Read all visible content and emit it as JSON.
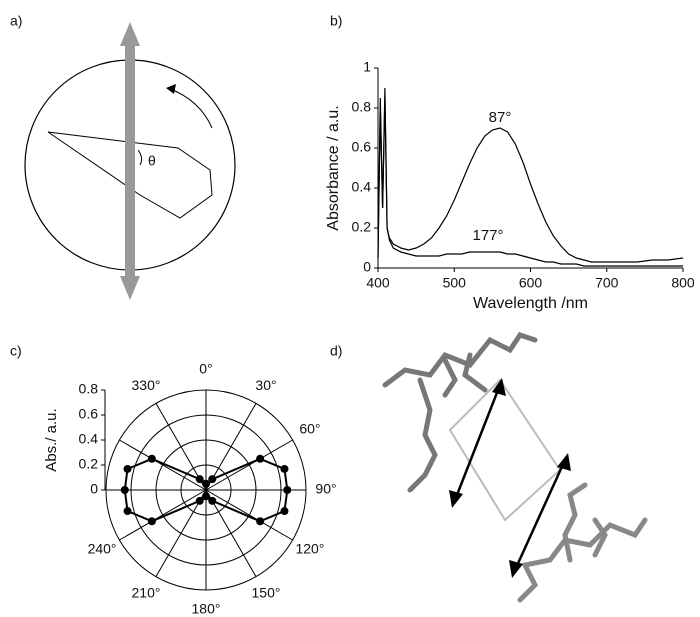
{
  "panel_labels": [
    "a)",
    "b)",
    "c)",
    "d)"
  ],
  "diagram": {
    "angle_label": "θ"
  },
  "chart_data": [
    {
      "type": "line",
      "xlabel": "Wavelength /nm",
      "ylabel": "Absorbance / a.u.",
      "xlim": [
        400,
        800
      ],
      "xticks": [
        400,
        500,
        600,
        700,
        800
      ],
      "ylim": [
        0,
        1
      ],
      "yticks": [
        0,
        0.2,
        0.4,
        0.6,
        0.8,
        1
      ],
      "x": [
        400,
        403,
        406,
        409,
        412,
        415,
        420,
        430,
        440,
        450,
        460,
        470,
        480,
        490,
        500,
        510,
        520,
        530,
        540,
        550,
        560,
        570,
        580,
        590,
        600,
        610,
        620,
        630,
        640,
        650,
        660,
        670,
        680,
        690,
        700,
        720,
        740,
        760,
        780,
        800
      ],
      "series": [
        {
          "name": "87°",
          "color": "#000000",
          "values": [
            0.05,
            0.85,
            0.3,
            0.9,
            0.2,
            0.15,
            0.12,
            0.1,
            0.09,
            0.1,
            0.12,
            0.15,
            0.2,
            0.26,
            0.34,
            0.43,
            0.52,
            0.6,
            0.66,
            0.69,
            0.7,
            0.68,
            0.62,
            0.53,
            0.42,
            0.32,
            0.23,
            0.16,
            0.11,
            0.07,
            0.05,
            0.04,
            0.03,
            0.03,
            0.03,
            0.03,
            0.03,
            0.04,
            0.04,
            0.05
          ]
        },
        {
          "name": "177°",
          "color": "#000000",
          "values": [
            0.05,
            0.8,
            0.3,
            0.85,
            0.2,
            0.14,
            0.1,
            0.08,
            0.07,
            0.06,
            0.06,
            0.06,
            0.06,
            0.07,
            0.07,
            0.07,
            0.08,
            0.08,
            0.08,
            0.08,
            0.08,
            0.07,
            0.07,
            0.06,
            0.05,
            0.04,
            0.03,
            0.03,
            0.02,
            0.02,
            0.02,
            0.01,
            0.01,
            0.01,
            0.01,
            0.01,
            0.01,
            0.01,
            0.01,
            0.01
          ]
        }
      ]
    },
    {
      "type": "polar",
      "rlabel": "Abs./ a.u.",
      "rlim": [
        0,
        0.8
      ],
      "rticks": [
        0,
        0.2,
        0.4,
        0.6,
        0.8
      ],
      "thetaticks": [
        {
          "value": 0,
          "label": "0°"
        },
        {
          "value": 30,
          "label": "30°"
        },
        {
          "value": 60,
          "label": "60°"
        },
        {
          "value": 90,
          "label": "90°"
        },
        {
          "value": 120,
          "label": "120°"
        },
        {
          "value": 150,
          "label": "150°"
        },
        {
          "value": 180,
          "label": "180°"
        },
        {
          "value": 210,
          "label": "210°"
        },
        {
          "value": 240,
          "label": "240°"
        },
        {
          "value": 270,
          "label": ""
        },
        {
          "value": 300,
          "label": ""
        },
        {
          "value": 330,
          "label": "330°"
        }
      ],
      "series": [
        {
          "color": "#000000",
          "theta": [
            0,
            30,
            60,
            75,
            90,
            105,
            120,
            150,
            180,
            210,
            240,
            255,
            270,
            285,
            300,
            330
          ],
          "r": [
            0.05,
            0.1,
            0.5,
            0.65,
            0.65,
            0.65,
            0.5,
            0.1,
            0.05,
            0.1,
            0.5,
            0.65,
            0.65,
            0.65,
            0.5,
            0.1
          ]
        }
      ]
    }
  ]
}
